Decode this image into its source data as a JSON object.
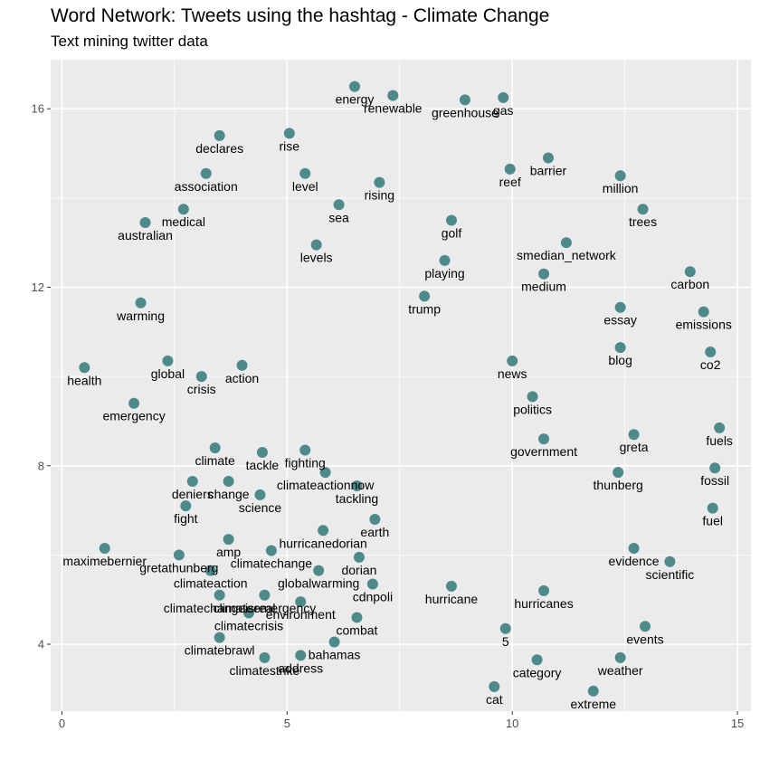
{
  "chart_data": {
    "type": "scatter",
    "title": "Word Network: Tweets using the hashtag - Climate Change",
    "subtitle": "Text mining twitter data",
    "xlim": [
      -0.25,
      15.3
    ],
    "ylim": [
      2.5,
      17.1
    ],
    "x_ticks": [
      0,
      5,
      10,
      15
    ],
    "y_ticks": [
      4,
      8,
      12,
      16
    ],
    "grid": true,
    "point_color": "#4f8a8b",
    "panel_color": "#ebebeb",
    "points": [
      {
        "label": "energy",
        "x": 6.5,
        "y": 16.5
      },
      {
        "label": "renewable",
        "x": 7.35,
        "y": 16.3
      },
      {
        "label": "greenhouse",
        "x": 8.95,
        "y": 16.2
      },
      {
        "label": "gas",
        "x": 9.8,
        "y": 16.25
      },
      {
        "label": "declares",
        "x": 3.5,
        "y": 15.4
      },
      {
        "label": "rise",
        "x": 5.05,
        "y": 15.45
      },
      {
        "label": "barrier",
        "x": 10.8,
        "y": 14.9
      },
      {
        "label": "reef",
        "x": 9.95,
        "y": 14.65
      },
      {
        "label": "association",
        "x": 3.2,
        "y": 14.55
      },
      {
        "label": "level",
        "x": 5.4,
        "y": 14.55
      },
      {
        "label": "million",
        "x": 12.4,
        "y": 14.5
      },
      {
        "label": "rising",
        "x": 7.05,
        "y": 14.35
      },
      {
        "label": "sea",
        "x": 6.15,
        "y": 13.85
      },
      {
        "label": "trees",
        "x": 12.9,
        "y": 13.75
      },
      {
        "label": "medical",
        "x": 2.7,
        "y": 13.75
      },
      {
        "label": "golf",
        "x": 8.65,
        "y": 13.5
      },
      {
        "label": "australian",
        "x": 1.85,
        "y": 13.45
      },
      {
        "label": "smedian_network",
        "x": 11.2,
        "y": 13.0
      },
      {
        "label": "levels",
        "x": 5.65,
        "y": 12.95
      },
      {
        "label": "playing",
        "x": 8.5,
        "y": 12.6
      },
      {
        "label": "carbon",
        "x": 13.95,
        "y": 12.35
      },
      {
        "label": "medium",
        "x": 10.7,
        "y": 12.3
      },
      {
        "label": "trump",
        "x": 8.05,
        "y": 11.8
      },
      {
        "label": "warming",
        "x": 1.75,
        "y": 11.65
      },
      {
        "label": "essay",
        "x": 12.4,
        "y": 11.55
      },
      {
        "label": "emissions",
        "x": 14.25,
        "y": 11.45
      },
      {
        "label": "blog",
        "x": 12.4,
        "y": 10.65
      },
      {
        "label": "co2",
        "x": 14.4,
        "y": 10.55
      },
      {
        "label": "global",
        "x": 2.35,
        "y": 10.35
      },
      {
        "label": "news",
        "x": 10.0,
        "y": 10.35
      },
      {
        "label": "action",
        "x": 4.0,
        "y": 10.25
      },
      {
        "label": "health",
        "x": 0.5,
        "y": 10.2
      },
      {
        "label": "crisis",
        "x": 3.1,
        "y": 10.0
      },
      {
        "label": "politics",
        "x": 10.45,
        "y": 9.55
      },
      {
        "label": "emergency",
        "x": 1.6,
        "y": 9.4
      },
      {
        "label": "fuels",
        "x": 14.6,
        "y": 8.85
      },
      {
        "label": "greta",
        "x": 12.7,
        "y": 8.7
      },
      {
        "label": "government",
        "x": 10.7,
        "y": 8.6
      },
      {
        "label": "climate",
        "x": 3.4,
        "y": 8.4
      },
      {
        "label": "tackle",
        "x": 4.45,
        "y": 8.3
      },
      {
        "label": "fighting",
        "x": 5.4,
        "y": 8.35
      },
      {
        "label": "fossil",
        "x": 14.5,
        "y": 7.95
      },
      {
        "label": "climateactionnow",
        "x": 5.85,
        "y": 7.85
      },
      {
        "label": "thunberg",
        "x": 12.35,
        "y": 7.85
      },
      {
        "label": "deniers",
        "x": 2.9,
        "y": 7.65
      },
      {
        "label": "change",
        "x": 3.7,
        "y": 7.65
      },
      {
        "label": "tackling",
        "x": 6.55,
        "y": 7.55
      },
      {
        "label": "science",
        "x": 4.4,
        "y": 7.35
      },
      {
        "label": "fight",
        "x": 2.75,
        "y": 7.1
      },
      {
        "label": "fuel",
        "x": 14.45,
        "y": 7.05
      },
      {
        "label": "earth",
        "x": 6.95,
        "y": 6.8
      },
      {
        "label": "hurricanedorian",
        "x": 5.8,
        "y": 6.55
      },
      {
        "label": "amp",
        "x": 3.7,
        "y": 6.35
      },
      {
        "label": "maximebernier",
        "x": 0.95,
        "y": 6.15
      },
      {
        "label": "evidence",
        "x": 12.7,
        "y": 6.15
      },
      {
        "label": "climatechange",
        "x": 4.65,
        "y": 6.1
      },
      {
        "label": "gretathunberg",
        "x": 2.6,
        "y": 6.0
      },
      {
        "label": "dorian",
        "x": 6.6,
        "y": 5.95
      },
      {
        "label": "scientific",
        "x": 13.5,
        "y": 5.85
      },
      {
        "label": "climateaction",
        "x": 3.3,
        "y": 5.65
      },
      {
        "label": "globalwarming",
        "x": 5.7,
        "y": 5.65
      },
      {
        "label": "cdnpoli",
        "x": 6.9,
        "y": 5.35
      },
      {
        "label": "hurricane",
        "x": 8.65,
        "y": 5.3
      },
      {
        "label": "hurricanes",
        "x": 10.7,
        "y": 5.2
      },
      {
        "label": "climatechangeisreal",
        "x": 3.5,
        "y": 5.1
      },
      {
        "label": "climateemergency",
        "x": 4.5,
        "y": 5.1
      },
      {
        "label": "environment",
        "x": 5.3,
        "y": 4.95
      },
      {
        "label": "climatecrisis",
        "x": 4.15,
        "y": 4.7
      },
      {
        "label": "combat",
        "x": 6.55,
        "y": 4.6
      },
      {
        "label": "events",
        "x": 12.95,
        "y": 4.4
      },
      {
        "label": "5",
        "x": 9.85,
        "y": 4.35
      },
      {
        "label": "climatebrawl",
        "x": 3.5,
        "y": 4.15
      },
      {
        "label": "bahamas",
        "x": 6.05,
        "y": 4.05
      },
      {
        "label": "address",
        "x": 5.3,
        "y": 3.75
      },
      {
        "label": "climatestrike",
        "x": 4.5,
        "y": 3.7
      },
      {
        "label": "category",
        "x": 10.55,
        "y": 3.65
      },
      {
        "label": "weather",
        "x": 12.4,
        "y": 3.7
      },
      {
        "label": "cat",
        "x": 9.6,
        "y": 3.05
      },
      {
        "label": "extreme",
        "x": 11.8,
        "y": 2.95
      }
    ]
  }
}
